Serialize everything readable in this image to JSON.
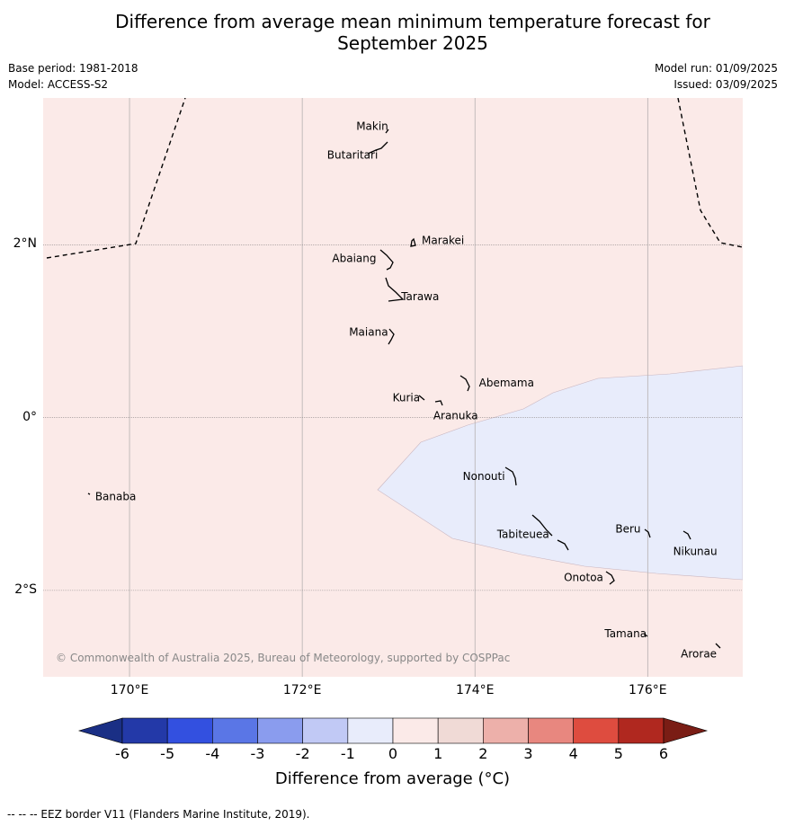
{
  "title_line1": "Difference from average mean minimum temperature forecast for",
  "title_line2": "September 2025",
  "meta_left": [
    "Base period: 1981-2018",
    "Model: ACCESS-S2"
  ],
  "meta_right": [
    "Model run: 01/09/2025",
    "Issued: 03/09/2025"
  ],
  "map": {
    "lon_range": [
      169.0,
      177.1
    ],
    "lat_range": [
      -3.0,
      3.7
    ],
    "lat_labels": [
      {
        "lat": 2,
        "label": "2°N"
      },
      {
        "lat": 0,
        "label": "0°"
      },
      {
        "lat": -2,
        "label": "2°S"
      }
    ],
    "lon_labels": [
      {
        "lon": 170,
        "label": "170°E"
      },
      {
        "lon": 172,
        "label": "172°E"
      },
      {
        "lon": 174,
        "label": "174°E"
      },
      {
        "lon": 176,
        "label": "176°E"
      }
    ],
    "background_color": "#fbeae8",
    "anomaly_region_color": "#e8ecfb",
    "islands": [
      {
        "name": "Makin",
        "lon": 173.0,
        "lat": 3.35
      },
      {
        "name": "Butaritari",
        "lon": 172.85,
        "lat": 3.1
      },
      {
        "name": "Marakei",
        "lon": 173.3,
        "lat": 2.0
      },
      {
        "name": "Abaiang",
        "lon": 172.95,
        "lat": 1.8
      },
      {
        "name": "Tarawa",
        "lon": 173.0,
        "lat": 1.4
      },
      {
        "name": "Maiana",
        "lon": 173.0,
        "lat": 0.95
      },
      {
        "name": "Abemama",
        "lon": 173.9,
        "lat": 0.4
      },
      {
        "name": "Kuria",
        "lon": 173.4,
        "lat": 0.23
      },
      {
        "name": "Aranuka",
        "lon": 173.6,
        "lat": 0.17
      },
      {
        "name": "Banaba",
        "lon": 169.55,
        "lat": -0.87
      },
      {
        "name": "Nonouti",
        "lon": 174.4,
        "lat": -0.7
      },
      {
        "name": "Tabiteuea",
        "lon": 174.9,
        "lat": -1.35
      },
      {
        "name": "Beru",
        "lon": 176.0,
        "lat": -1.33
      },
      {
        "name": "Nikunau",
        "lon": 176.45,
        "lat": -1.38
      },
      {
        "name": "Onotoa",
        "lon": 175.55,
        "lat": -1.85
      },
      {
        "name": "Tamana",
        "lon": 176.0,
        "lat": -2.5
      },
      {
        "name": "Arorae",
        "lon": 176.8,
        "lat": -2.65
      }
    ],
    "copyright": "© Commonwealth of Australia 2025, Bureau of Meteorology, supported by COSPPac"
  },
  "colorbar": {
    "ticks": [
      "-6",
      "-5",
      "-4",
      "-3",
      "-2",
      "-1",
      "0",
      "1",
      "2",
      "3",
      "4",
      "5",
      "6"
    ],
    "colors": [
      "#2339a8",
      "#3350e0",
      "#5a76e6",
      "#8a9cee",
      "#c1c9f5",
      "#e8ecfb",
      "#fbeae8",
      "#f0dad6",
      "#edb0aa",
      "#e8877f",
      "#de4c3f",
      "#b0281f"
    ],
    "under_color": "#1a2f85",
    "over_color": "#7a1d15",
    "label": "Difference from average (°C)"
  },
  "eez_note": "--  --  -- EEZ border V11 (Flanders Marine Institute, 2019)."
}
